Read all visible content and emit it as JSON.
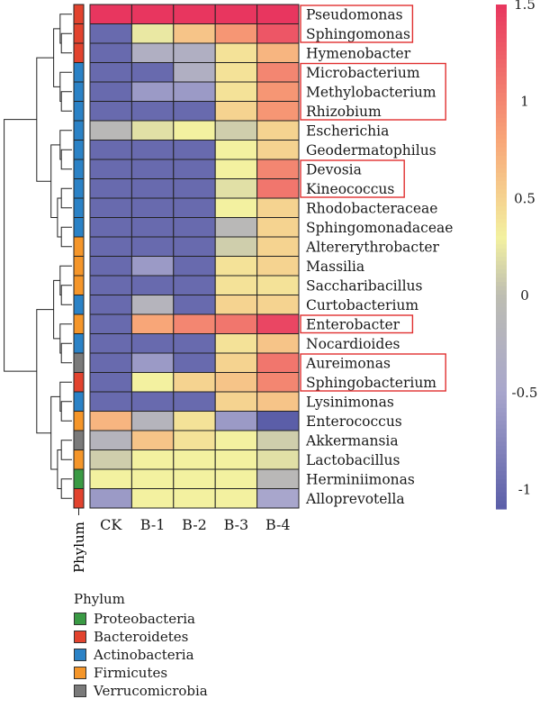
{
  "chart_data": {
    "type": "heatmap",
    "columns": [
      "CK",
      "B-1",
      "B-2",
      "B-3",
      "B-4"
    ],
    "rows": [
      "Pseudomonas",
      "Sphingomonas",
      "Hymenobacter",
      "Microbacterium",
      "Methylobacterium",
      "Rhizobium",
      "Escherichia",
      "Geodermatophilus",
      "Devosia",
      "Kineococcus",
      "Rhodobacteraceae",
      "Sphingomonadaceae",
      "Altererythrobacter",
      "Massilia",
      "Saccharibacillus",
      "Curtobacterium",
      "Enterobacter",
      "Nocardioides",
      "Aureimonas",
      "Sphingobacterium",
      "Lysinimonas",
      "Enterococcus",
      "Akkermansia",
      "Lactobacillus",
      "Herminiimonas",
      "Alloprevotella"
    ],
    "values": [
      [
        1.5,
        1.5,
        1.5,
        1.5,
        1.5
      ],
      [
        -1.0,
        0.25,
        0.6,
        0.9,
        1.3
      ],
      [
        -1.0,
        -0.3,
        -0.3,
        0.4,
        0.7
      ],
      [
        -1.0,
        -1.0,
        -0.3,
        0.4,
        1.0
      ],
      [
        -1.0,
        -0.6,
        -0.6,
        0.4,
        0.9
      ],
      [
        -1.0,
        -1.0,
        -1.0,
        0.5,
        0.9
      ],
      [
        -0.1,
        0.2,
        0.3,
        0.1,
        0.5
      ],
      [
        -1.0,
        -1.0,
        -1.0,
        0.3,
        0.5
      ],
      [
        -1.0,
        -1.0,
        -1.0,
        0.3,
        1.0
      ],
      [
        -1.0,
        -1.0,
        -1.0,
        0.2,
        1.1
      ],
      [
        -1.0,
        -1.0,
        -1.0,
        0.3,
        0.5
      ],
      [
        -1.0,
        -1.0,
        -1.0,
        -0.1,
        0.5
      ],
      [
        -1.0,
        -1.0,
        -1.0,
        0.1,
        0.5
      ],
      [
        -1.0,
        -0.6,
        -1.0,
        0.4,
        0.5
      ],
      [
        -1.0,
        -1.0,
        -1.0,
        0.4,
        0.4
      ],
      [
        -1.0,
        -0.2,
        -1.0,
        0.5,
        0.5
      ],
      [
        -1.0,
        0.8,
        1.0,
        1.1,
        1.4
      ],
      [
        -1.0,
        -1.0,
        -1.0,
        0.4,
        0.6
      ],
      [
        -1.0,
        -0.6,
        -1.0,
        0.5,
        1.1
      ],
      [
        -1.0,
        0.3,
        0.5,
        0.6,
        1.0
      ],
      [
        -1.0,
        -1.0,
        -1.0,
        0.5,
        0.6
      ],
      [
        0.7,
        -0.2,
        0.4,
        -0.6,
        -1.1
      ],
      [
        -0.2,
        0.6,
        0.4,
        0.3,
        0.1
      ],
      [
        0.1,
        0.3,
        0.3,
        0.3,
        0.2
      ],
      [
        0.3,
        0.3,
        0.3,
        0.3,
        -0.1
      ],
      [
        -0.6,
        0.3,
        0.3,
        0.3,
        -0.5
      ]
    ],
    "row_phylum": [
      "Bacteroidetes",
      "Bacteroidetes",
      "Bacteroidetes",
      "Actinobacteria",
      "Actinobacteria",
      "Actinobacteria",
      "Actinobacteria",
      "Actinobacteria",
      "Actinobacteria",
      "Actinobacteria",
      "Actinobacteria",
      "Actinobacteria",
      "Firmicutes",
      "Firmicutes",
      "Firmicutes",
      "Actinobacteria",
      "Firmicutes",
      "Actinobacteria",
      "Verrucomicrobia",
      "Bacteroidetes",
      "Actinobacteria",
      "Firmicutes",
      "Verrucomicrobia",
      "Firmicutes",
      "Proteobacteria",
      "Bacteroidetes"
    ],
    "highlight_groups": [
      [
        0,
        1
      ],
      [
        3,
        5
      ],
      [
        8,
        9
      ],
      [
        16,
        16
      ],
      [
        18,
        19
      ]
    ],
    "colorbar": {
      "min": -1.1,
      "max": 1.5,
      "ticks": [
        1.5,
        1,
        0.5,
        0,
        -0.5,
        -1
      ]
    },
    "colorscale": [
      [
        -1.1,
        "#5b5ea8"
      ],
      [
        -0.5,
        "#a8a6cc"
      ],
      [
        0,
        "#bdbdb2"
      ],
      [
        0.3,
        "#f3f1a0"
      ],
      [
        0.8,
        "#f8a678"
      ],
      [
        1.5,
        "#e8365f"
      ]
    ],
    "phylum_label": "Phylum",
    "legend": {
      "title": "Phylum",
      "items": [
        {
          "name": "Proteobacteria",
          "color": "#3a9a44"
        },
        {
          "name": "Bacteroidetes",
          "color": "#e2432e"
        },
        {
          "name": "Actinobacteria",
          "color": "#2b82c6"
        },
        {
          "name": "Firmicutes",
          "color": "#f5962a"
        },
        {
          "name": "Verrucomicrobia",
          "color": "#7a7a7a"
        }
      ]
    }
  }
}
